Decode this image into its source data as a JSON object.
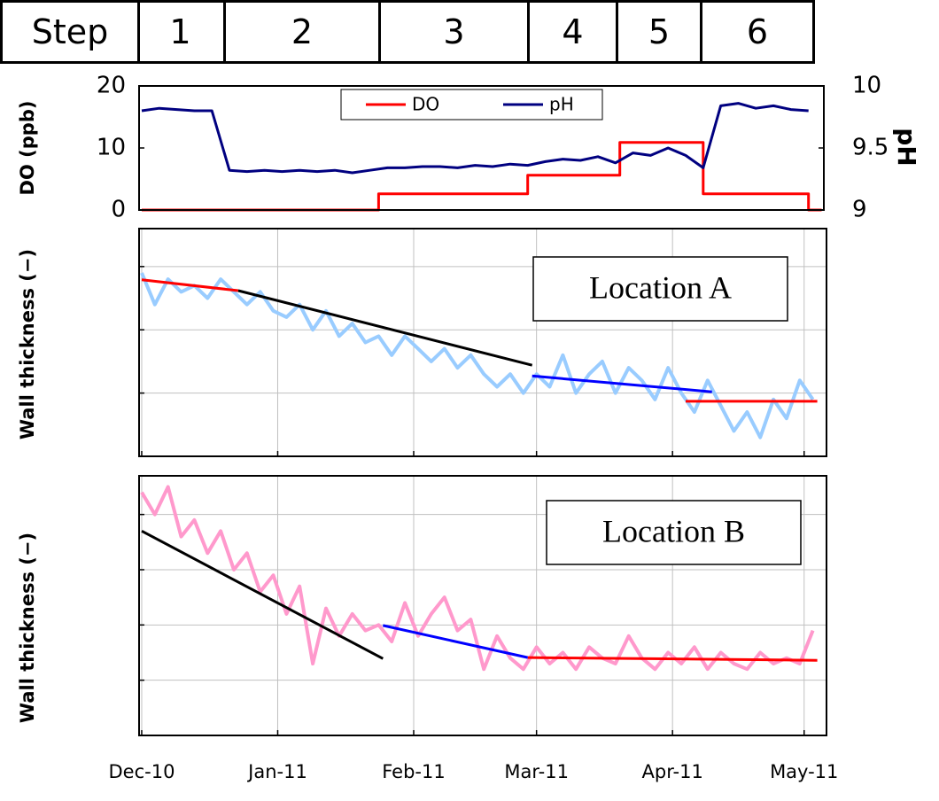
{
  "step_table": {
    "header": "Step",
    "steps": [
      "1",
      "2",
      "3",
      "4",
      "5",
      "6"
    ]
  },
  "chart_data": [
    {
      "type": "line",
      "ylabel": "DO (ppb)",
      "y2label": "pH",
      "xlim": [
        -0.6,
        155.5
      ],
      "ylim": [
        0,
        20
      ],
      "yticks": [
        0,
        10,
        20
      ],
      "y2lim": [
        9,
        10
      ],
      "y2ticks": [
        9,
        9.5,
        10
      ],
      "legend": "top",
      "series": [
        {
          "name": "DO",
          "color": "#ff0000",
          "x": [
            0,
            54,
            54,
            88,
            88,
            109,
            109,
            128,
            128,
            152,
            152,
            155
          ],
          "values": [
            0,
            0,
            2.6,
            2.6,
            5.6,
            5.6,
            10.9,
            10.9,
            2.6,
            2.6,
            0,
            0
          ]
        },
        {
          "name": "pH",
          "color": "#000080",
          "axis": "y2",
          "x": [
            0,
            4,
            8,
            12,
            16,
            20,
            24,
            28,
            32,
            36,
            40,
            44,
            48,
            52,
            56,
            60,
            64,
            68,
            72,
            76,
            80,
            84,
            88,
            92,
            96,
            100,
            104,
            108,
            112,
            116,
            120,
            124,
            128,
            132,
            136,
            140,
            144,
            148,
            152
          ],
          "values": [
            9.8,
            9.82,
            9.81,
            9.8,
            9.8,
            9.32,
            9.31,
            9.32,
            9.31,
            9.32,
            9.31,
            9.32,
            9.3,
            9.32,
            9.34,
            9.34,
            9.35,
            9.35,
            9.34,
            9.36,
            9.35,
            9.37,
            9.36,
            9.39,
            9.41,
            9.4,
            9.43,
            9.38,
            9.46,
            9.44,
            9.5,
            9.44,
            9.34,
            9.84,
            9.86,
            9.82,
            9.84,
            9.81,
            9.8
          ]
        }
      ]
    },
    {
      "type": "line",
      "ylabel": "Wall thickness (−)",
      "annotation": "Location A",
      "xlim": [
        -0.6,
        156.1
      ],
      "xticks": [
        0,
        31,
        62,
        90,
        121,
        151
      ],
      "xtick_labels": false,
      "ylim": [
        0,
        3.6
      ],
      "yticks": [
        1,
        2,
        3
      ],
      "ytick_labels": false,
      "grid": true,
      "series": [
        {
          "color": "#99ccff",
          "x": [
            0,
            3,
            6,
            9,
            12,
            15,
            18,
            21,
            24,
            27,
            30,
            33,
            36,
            39,
            42,
            45,
            48,
            51,
            54,
            57,
            60,
            63,
            66,
            69,
            72,
            75,
            78,
            81,
            84,
            87,
            90,
            93,
            96,
            99,
            102,
            105,
            108,
            111,
            114,
            117,
            120,
            123,
            126,
            129,
            132,
            135,
            138,
            141,
            144,
            147,
            150,
            153
          ],
          "values": [
            2.9,
            2.4,
            2.8,
            2.6,
            2.7,
            2.5,
            2.8,
            2.6,
            2.4,
            2.6,
            2.3,
            2.2,
            2.4,
            2.0,
            2.3,
            1.9,
            2.1,
            1.8,
            1.9,
            1.6,
            1.9,
            1.7,
            1.5,
            1.7,
            1.4,
            1.6,
            1.3,
            1.1,
            1.3,
            1.0,
            1.3,
            1.1,
            1.6,
            1.0,
            1.3,
            1.5,
            1.0,
            1.4,
            1.2,
            0.9,
            1.4,
            1.0,
            0.7,
            1.2,
            0.8,
            0.4,
            0.7,
            0.3,
            0.9,
            0.6,
            1.2,
            0.9
          ]
        },
        {
          "color": "#ff0000",
          "x": [
            0,
            22
          ],
          "values": [
            2.79,
            2.62
          ]
        },
        {
          "color": "#000000",
          "x": [
            22,
            89
          ],
          "values": [
            2.62,
            1.44
          ]
        },
        {
          "color": "#0000ff",
          "x": [
            89,
            130
          ],
          "values": [
            1.27,
            1.02
          ]
        },
        {
          "color": "#ff0000",
          "x": [
            124,
            154
          ],
          "values": [
            0.87,
            0.87
          ]
        }
      ]
    },
    {
      "type": "line",
      "ylabel": "Wall thickness (−)",
      "annotation": "Location B",
      "xlim": [
        -0.6,
        156.1
      ],
      "xticks": [
        {
          "value": 0,
          "label": "Dec-10"
        },
        {
          "value": 31,
          "label": "Jan-11"
        },
        {
          "value": 62,
          "label": "Feb-11"
        },
        {
          "value": 90,
          "label": "Mar-11"
        },
        {
          "value": 121,
          "label": "Apr-11"
        },
        {
          "value": 151,
          "label": "May-11"
        }
      ],
      "ylim": [
        0,
        4.7
      ],
      "yticks": [
        1,
        2,
        3,
        4
      ],
      "ytick_labels": false,
      "grid": true,
      "series": [
        {
          "color": "#ff99cc",
          "x": [
            0,
            3,
            6,
            9,
            12,
            15,
            18,
            21,
            24,
            27,
            30,
            33,
            36,
            39,
            42,
            45,
            48,
            51,
            54,
            57,
            60,
            63,
            66,
            69,
            72,
            75,
            78,
            81,
            84,
            87,
            90,
            93,
            96,
            99,
            102,
            105,
            108,
            111,
            114,
            117,
            120,
            123,
            126,
            129,
            132,
            135,
            138,
            141,
            144,
            147,
            150,
            153
          ],
          "values": [
            4.4,
            4.0,
            4.5,
            3.6,
            3.9,
            3.3,
            3.7,
            3.0,
            3.3,
            2.6,
            2.9,
            2.2,
            2.7,
            1.3,
            2.3,
            1.8,
            2.2,
            1.9,
            2.0,
            1.7,
            2.4,
            1.8,
            2.2,
            2.5,
            1.9,
            2.1,
            1.2,
            1.8,
            1.4,
            1.2,
            1.6,
            1.3,
            1.5,
            1.2,
            1.6,
            1.4,
            1.3,
            1.8,
            1.4,
            1.2,
            1.5,
            1.3,
            1.6,
            1.2,
            1.5,
            1.3,
            1.2,
            1.5,
            1.3,
            1.4,
            1.3,
            1.9
          ]
        },
        {
          "color": "#000000",
          "x": [
            0,
            55
          ],
          "values": [
            3.7,
            1.39
          ]
        },
        {
          "color": "#0000ff",
          "x": [
            55,
            88
          ],
          "values": [
            1.99,
            1.41
          ]
        },
        {
          "color": "#ff0000",
          "x": [
            88,
            154
          ],
          "values": [
            1.41,
            1.36
          ]
        }
      ]
    }
  ]
}
